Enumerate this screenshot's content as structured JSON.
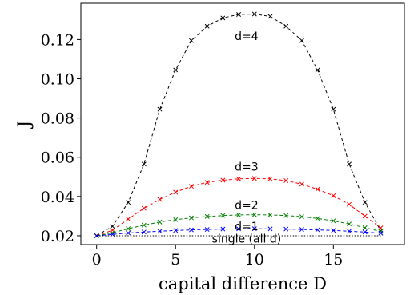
{
  "chart_data": {
    "type": "line",
    "xlabel": "capital difference D",
    "ylabel": "J",
    "xlim": [
      -1,
      19.5
    ],
    "ylim": [
      0.0155,
      0.1385
    ],
    "x_ticks": [
      0,
      5,
      10,
      15
    ],
    "y_ticks": [
      0.02,
      0.04,
      0.06,
      0.08,
      0.1,
      0.12
    ],
    "x_tick_labels": [
      "0",
      "5",
      "10",
      "15"
    ],
    "y_tick_labels": [
      "0.02",
      "0.04",
      "0.06",
      "0.08",
      "0.10",
      "0.12"
    ],
    "grid": false,
    "legend": "none",
    "x": [
      0,
      1,
      2,
      3,
      4,
      5,
      6,
      7,
      8,
      9,
      10,
      11,
      12,
      13,
      14,
      15,
      16,
      17,
      18
    ],
    "series": [
      {
        "color": "#000000",
        "style": "dashed",
        "marker": "x",
        "values": [
          0.02,
          0.0248,
          0.037,
          0.0565,
          0.0845,
          0.1045,
          0.1195,
          0.1268,
          0.131,
          0.1328,
          0.133,
          0.1318,
          0.1268,
          0.1195,
          0.1045,
          0.0845,
          0.0565,
          0.037,
          0.0225
        ]
      },
      {
        "color": "#ff0000",
        "style": "dashed",
        "marker": "x",
        "values": [
          0.02,
          0.0228,
          0.0285,
          0.034,
          0.0385,
          0.0422,
          0.0452,
          0.0472,
          0.0483,
          0.049,
          0.0492,
          0.049,
          0.0481,
          0.0463,
          0.0437,
          0.0404,
          0.036,
          0.03,
          0.024
        ]
      },
      {
        "color": "#008000",
        "style": "dashed",
        "marker": "x",
        "values": [
          0.02,
          0.0215,
          0.0236,
          0.0254,
          0.027,
          0.0282,
          0.0291,
          0.0298,
          0.0303,
          0.0306,
          0.0307,
          0.0306,
          0.0303,
          0.0297,
          0.0288,
          0.0276,
          0.026,
          0.0241,
          0.0222
        ]
      },
      {
        "color": "#0000ff",
        "style": "dashed",
        "marker": "x",
        "values": [
          0.02,
          0.0207,
          0.0214,
          0.0219,
          0.0223,
          0.0227,
          0.023,
          0.0232,
          0.0234,
          0.0235,
          0.0236,
          0.0235,
          0.0234,
          0.0232,
          0.023,
          0.0227,
          0.0223,
          0.0219,
          0.0213
        ]
      },
      {
        "color": "#000000",
        "style": "dotted",
        "marker": "none",
        "values": [
          0.02,
          0.02,
          0.02,
          0.02,
          0.02,
          0.02,
          0.02,
          0.02,
          0.02,
          0.02,
          0.02,
          0.02,
          0.02,
          0.02,
          0.02,
          0.02,
          0.02,
          0.02,
          0.02
        ]
      }
    ],
    "annotations": [
      {
        "text": "d=4",
        "x": 9.5,
        "y": 0.1218
      },
      {
        "text": "d=3",
        "x": 9.5,
        "y": 0.0553
      },
      {
        "text": "d=2",
        "x": 9.5,
        "y": 0.0357
      },
      {
        "text": "d=1",
        "x": 9.5,
        "y": 0.0248
      },
      {
        "text": "single (all d)",
        "x": 9.5,
        "y": 0.0186
      }
    ]
  }
}
